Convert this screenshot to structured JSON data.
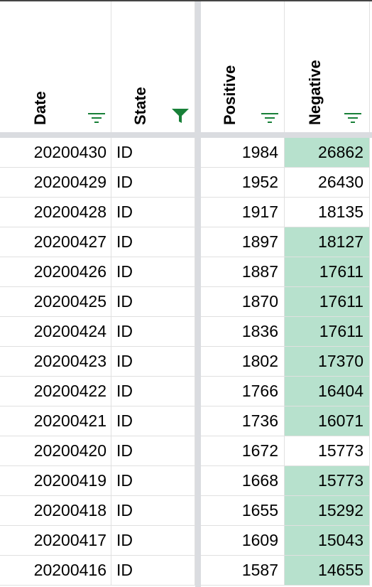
{
  "columns": {
    "date": "Date",
    "state": "State",
    "positive": "Positive",
    "negative": "Negative"
  },
  "filters": {
    "date": "filter-icon",
    "state": "filter-active-icon",
    "positive": "filter-icon",
    "negative": "filter-icon"
  },
  "colors": {
    "filter_green": "#188038",
    "highlight": "#b7e1cd",
    "gridline": "#e0e0e0",
    "freeze_bar": "#dadce0"
  },
  "rows": [
    {
      "date": "20200430",
      "state": "ID",
      "positive": "1984",
      "negative": "26862",
      "highlighted": true
    },
    {
      "date": "20200429",
      "state": "ID",
      "positive": "1952",
      "negative": "26430",
      "highlighted": false
    },
    {
      "date": "20200428",
      "state": "ID",
      "positive": "1917",
      "negative": "18135",
      "highlighted": false
    },
    {
      "date": "20200427",
      "state": "ID",
      "positive": "1897",
      "negative": "18127",
      "highlighted": true
    },
    {
      "date": "20200426",
      "state": "ID",
      "positive": "1887",
      "negative": "17611",
      "highlighted": true
    },
    {
      "date": "20200425",
      "state": "ID",
      "positive": "1870",
      "negative": "17611",
      "highlighted": true
    },
    {
      "date": "20200424",
      "state": "ID",
      "positive": "1836",
      "negative": "17611",
      "highlighted": true
    },
    {
      "date": "20200423",
      "state": "ID",
      "positive": "1802",
      "negative": "17370",
      "highlighted": true
    },
    {
      "date": "20200422",
      "state": "ID",
      "positive": "1766",
      "negative": "16404",
      "highlighted": true
    },
    {
      "date": "20200421",
      "state": "ID",
      "positive": "1736",
      "negative": "16071",
      "highlighted": true
    },
    {
      "date": "20200420",
      "state": "ID",
      "positive": "1672",
      "negative": "15773",
      "highlighted": false
    },
    {
      "date": "20200419",
      "state": "ID",
      "positive": "1668",
      "negative": "15773",
      "highlighted": true
    },
    {
      "date": "20200418",
      "state": "ID",
      "positive": "1655",
      "negative": "15292",
      "highlighted": true
    },
    {
      "date": "20200417",
      "state": "ID",
      "positive": "1609",
      "negative": "15043",
      "highlighted": true
    },
    {
      "date": "20200416",
      "state": "ID",
      "positive": "1587",
      "negative": "14655",
      "highlighted": true
    }
  ]
}
